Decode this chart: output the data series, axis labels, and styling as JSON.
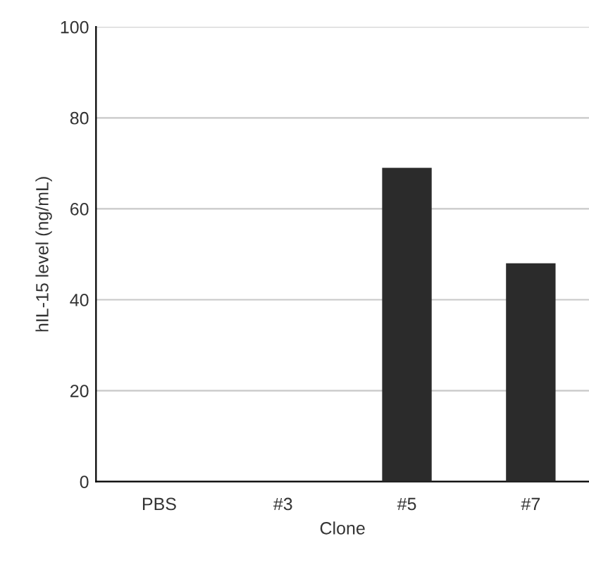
{
  "chart_data": {
    "type": "bar",
    "xlabel": "Clone",
    "ylabel": "hIL-15 level (ng/mL)",
    "categories": [
      "PBS",
      "#3",
      "#5",
      "#7"
    ],
    "values": [
      0,
      0,
      69,
      48
    ],
    "color": "#2b2b2b",
    "ylim": [
      0,
      100
    ],
    "yticks": [
      0,
      20,
      40,
      60,
      80,
      100
    ],
    "grid": "y"
  }
}
